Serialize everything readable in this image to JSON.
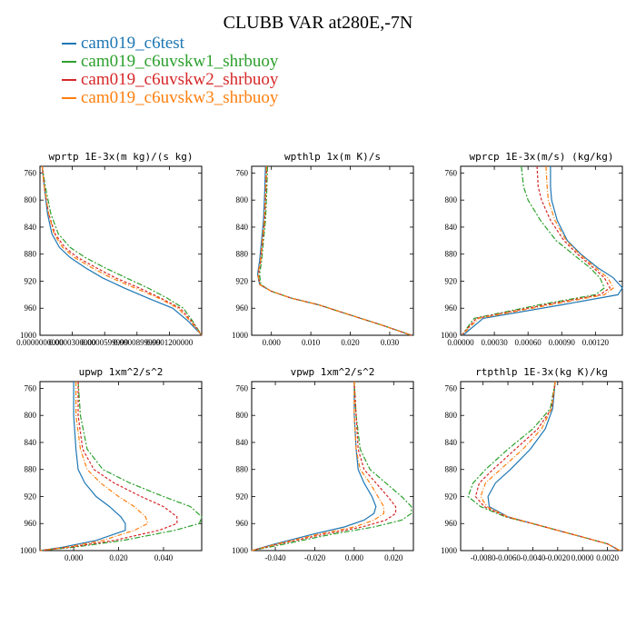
{
  "title": "CLUBB VAR at280E,-7N",
  "legend": [
    {
      "name": "cam019_c6test",
      "color": "#1f77b4"
    },
    {
      "name": "cam019_c6uvskw1_shrbuoy",
      "color": "#2ca02c"
    },
    {
      "name": "cam019_c6uvskw2_shrbuoy",
      "color": "#d62728"
    },
    {
      "name": "cam019_c6uvskw3_shrbuoy",
      "color": "#ff7f0e"
    }
  ],
  "chart_data": [
    {
      "type": "line",
      "title": "wprtp  1E-3x(m kg)/(s kg)",
      "xlim": [
        0.0,
        0.00015
      ],
      "ylim": [
        1000,
        750
      ],
      "xticks": [
        0.0,
        3e-05,
        6e-05,
        9e-05,
        0.00012
      ],
      "xtick_labels": [
        "0.0000000000",
        "0.0000300000",
        "0.0000599999",
        "0.0000899999",
        "0.0001200000"
      ],
      "yticks": [
        760,
        800,
        840,
        880,
        920,
        960,
        1000
      ],
      "ytick_labels": [
        "760",
        "800",
        "840",
        "880",
        "920",
        "960",
        "1000"
      ],
      "series": [
        {
          "name": "cam019_c6test",
          "x": [
            2e-06,
            4e-06,
            7e-06,
            1.1e-05,
            1.8e-05,
            2.8e-05,
            4.2e-05,
            5.8e-05,
            7.8e-05,
            0.0001,
            0.000123,
            0.000138,
            0.00015
          ],
          "y": [
            750,
            780,
            820,
            850,
            870,
            885,
            900,
            915,
            930,
            945,
            960,
            980,
            1000
          ]
        },
        {
          "name": "cam019_c6uvskw1_shrbuoy",
          "x": [
            2e-06,
            5e-06,
            1e-05,
            1.7e-05,
            2.8e-05,
            4.2e-05,
            6e-05,
            8e-05,
            0.0001,
            0.000118,
            0.000133,
            0.000142,
            0.00015
          ],
          "y": [
            750,
            780,
            820,
            850,
            870,
            885,
            900,
            915,
            930,
            945,
            960,
            980,
            1000
          ]
        },
        {
          "name": "cam019_c6uvskw2_shrbuoy",
          "x": [
            2e-06,
            4e-06,
            8e-06,
            1.4e-05,
            2.3e-05,
            3.5e-05,
            5.2e-05,
            7e-05,
            9.2e-05,
            0.000112,
            0.00013,
            0.000141,
            0.00015
          ],
          "y": [
            750,
            780,
            820,
            850,
            870,
            885,
            900,
            915,
            930,
            945,
            960,
            980,
            1000
          ]
        },
        {
          "name": "cam019_c6uvskw3_shrbuoy",
          "x": [
            2e-06,
            4e-06,
            8e-06,
            1.3e-05,
            2.1e-05,
            3.2e-05,
            4.8e-05,
            6.6e-05,
            8.8e-05,
            0.00011,
            0.000128,
            0.00014,
            0.00015
          ],
          "y": [
            750,
            780,
            820,
            850,
            870,
            885,
            900,
            915,
            930,
            945,
            960,
            980,
            1000
          ]
        }
      ]
    },
    {
      "type": "line",
      "title": "wpthlp  1x(m K)/s",
      "xlim": [
        -0.005,
        0.036
      ],
      "ylim": [
        1000,
        750
      ],
      "xticks": [
        0.0,
        0.01,
        0.02,
        0.03
      ],
      "xtick_labels": [
        "0.000",
        "0.010",
        "0.020",
        "0.030"
      ],
      "yticks": [
        760,
        800,
        840,
        880,
        920,
        960,
        1000
      ],
      "ytick_labels": [
        "760",
        "800",
        "840",
        "880",
        "920",
        "960",
        "1000"
      ],
      "series": [
        {
          "name": "cam019_c6test",
          "x": [
            -0.0015,
            -0.0017,
            -0.002,
            -0.0025,
            -0.003,
            -0.0035,
            -0.003,
            0.0,
            0.005,
            0.012,
            0.02,
            0.028,
            0.0355
          ],
          "y": [
            750,
            790,
            830,
            860,
            890,
            910,
            925,
            935,
            945,
            955,
            970,
            985,
            1000
          ]
        },
        {
          "name": "cam019_c6uvskw1_shrbuoy",
          "x": [
            -0.001,
            -0.0012,
            -0.0015,
            -0.002,
            -0.0025,
            -0.003,
            -0.0027,
            0.0,
            0.005,
            0.012,
            0.02,
            0.028,
            0.0355
          ],
          "y": [
            750,
            790,
            830,
            860,
            890,
            910,
            925,
            935,
            945,
            955,
            970,
            985,
            1000
          ]
        },
        {
          "name": "cam019_c6uvskw2_shrbuoy",
          "x": [
            -0.0012,
            -0.0014,
            -0.0017,
            -0.0022,
            -0.0027,
            -0.0033,
            -0.0029,
            0.0,
            0.005,
            0.012,
            0.02,
            0.028,
            0.0355
          ],
          "y": [
            750,
            790,
            830,
            860,
            890,
            910,
            925,
            935,
            945,
            955,
            970,
            985,
            1000
          ]
        },
        {
          "name": "cam019_c6uvskw3_shrbuoy",
          "x": [
            -0.0013,
            -0.0015,
            -0.0018,
            -0.0023,
            -0.0028,
            -0.0034,
            -0.003,
            0.0,
            0.005,
            0.012,
            0.02,
            0.028,
            0.0355
          ],
          "y": [
            750,
            790,
            830,
            860,
            890,
            910,
            925,
            935,
            945,
            955,
            970,
            985,
            1000
          ]
        }
      ]
    },
    {
      "type": "line",
      "title": "wprcp  1E-3x(m/s) (kg/kg)",
      "xlim": [
        0.0,
        0.00144
      ],
      "ylim": [
        1000,
        750
      ],
      "xticks": [
        0.0,
        0.0003,
        0.0006,
        0.0009,
        0.0012
      ],
      "xtick_labels": [
        "0.00000",
        "0.00030",
        "0.00060",
        "0.00090",
        "0.00120"
      ],
      "yticks": [
        760,
        800,
        840,
        880,
        920,
        960,
        1000
      ],
      "ytick_labels": [
        "760",
        "800",
        "840",
        "880",
        "920",
        "960",
        "1000"
      ],
      "series": [
        {
          "name": "cam019_c6test",
          "x": [
            0.0008,
            0.0008,
            0.00081,
            0.00086,
            0.00095,
            0.00107,
            0.00122,
            0.00136,
            0.00144,
            0.0014,
            0.0009,
            0.0002,
            2e-05
          ],
          "y": [
            750,
            780,
            800,
            830,
            860,
            880,
            900,
            915,
            930,
            940,
            955,
            975,
            1000
          ]
        },
        {
          "name": "cam019_c6uvskw1_shrbuoy",
          "x": [
            0.00054,
            0.00056,
            0.0006,
            0.00071,
            0.00085,
            0.001,
            0.00115,
            0.00124,
            0.00128,
            0.0012,
            0.0007,
            0.00012,
            1e-05
          ],
          "y": [
            750,
            780,
            800,
            830,
            860,
            880,
            900,
            915,
            930,
            940,
            955,
            975,
            1000
          ]
        },
        {
          "name": "cam019_c6uvskw2_shrbuoy",
          "x": [
            0.00068,
            0.00069,
            0.00072,
            0.0008,
            0.00092,
            0.00104,
            0.00118,
            0.00128,
            0.00133,
            0.00124,
            0.00075,
            0.00014,
            1e-05
          ],
          "y": [
            750,
            780,
            800,
            830,
            860,
            880,
            900,
            915,
            930,
            940,
            955,
            975,
            1000
          ]
        },
        {
          "name": "cam019_c6uvskw3_shrbuoy",
          "x": [
            0.00076,
            0.00077,
            0.00078,
            0.00084,
            0.00094,
            0.00106,
            0.0012,
            0.00131,
            0.00136,
            0.00128,
            0.0008,
            0.00016,
            1e-05
          ],
          "y": [
            750,
            780,
            800,
            830,
            860,
            880,
            900,
            915,
            930,
            940,
            955,
            975,
            1000
          ]
        }
      ]
    },
    {
      "type": "line",
      "title": "upwp  1xm^2/s^2",
      "xlim": [
        -0.015,
        0.057
      ],
      "ylim": [
        1000,
        750
      ],
      "xticks": [
        0.0,
        0.02,
        0.04
      ],
      "xtick_labels": [
        "0.000",
        "0.020",
        "0.040"
      ],
      "yticks": [
        760,
        800,
        840,
        880,
        920,
        960,
        1000
      ],
      "ytick_labels": [
        "760",
        "800",
        "840",
        "880",
        "920",
        "960",
        "1000"
      ],
      "series": [
        {
          "name": "cam019_c6test",
          "x": [
            0.0,
            0.0,
            0.001,
            0.002,
            0.005,
            0.01,
            0.016,
            0.021,
            0.023,
            0.023,
            0.01,
            -0.005,
            -0.015
          ],
          "y": [
            750,
            800,
            850,
            880,
            900,
            920,
            935,
            950,
            960,
            970,
            985,
            995,
            1000
          ]
        },
        {
          "name": "cam019_c6uvskw1_shrbuoy",
          "x": [
            0.002,
            0.003,
            0.006,
            0.013,
            0.025,
            0.04,
            0.052,
            0.057,
            0.056,
            0.045,
            0.022,
            0.0,
            -0.015
          ],
          "y": [
            750,
            800,
            850,
            880,
            900,
            920,
            935,
            950,
            960,
            970,
            985,
            995,
            1000
          ]
        },
        {
          "name": "cam019_c6uvskw2_shrbuoy",
          "x": [
            0.002,
            0.002,
            0.004,
            0.009,
            0.018,
            0.03,
            0.04,
            0.046,
            0.046,
            0.038,
            0.018,
            -0.002,
            -0.015
          ],
          "y": [
            750,
            800,
            850,
            880,
            900,
            920,
            935,
            950,
            960,
            970,
            985,
            995,
            1000
          ]
        },
        {
          "name": "cam019_c6uvskw3_shrbuoy",
          "x": [
            0.001,
            0.001,
            0.003,
            0.006,
            0.012,
            0.02,
            0.027,
            0.032,
            0.033,
            0.027,
            0.013,
            -0.003,
            -0.015
          ],
          "y": [
            750,
            800,
            850,
            880,
            900,
            920,
            935,
            950,
            960,
            970,
            985,
            995,
            1000
          ]
        }
      ]
    },
    {
      "type": "line",
      "title": "vpwp  1xm^2/s^2",
      "xlim": [
        -0.052,
        0.03
      ],
      "ylim": [
        1000,
        750
      ],
      "xticks": [
        -0.04,
        -0.02,
        0.0,
        0.02
      ],
      "xtick_labels": [
        "-0.040",
        "-0.020",
        "0.000",
        "0.020"
      ],
      "yticks": [
        760,
        800,
        840,
        880,
        920,
        960,
        1000
      ],
      "ytick_labels": [
        "760",
        "800",
        "840",
        "880",
        "920",
        "960",
        "1000"
      ],
      "series": [
        {
          "name": "cam019_c6test",
          "x": [
            0.0,
            0.0,
            0.001,
            0.002,
            0.005,
            0.009,
            0.011,
            0.01,
            0.005,
            -0.005,
            -0.02,
            -0.04,
            -0.052
          ],
          "y": [
            750,
            800,
            850,
            880,
            900,
            920,
            935,
            945,
            955,
            965,
            975,
            990,
            1000
          ]
        },
        {
          "name": "cam019_c6uvskw1_shrbuoy",
          "x": [
            0.0,
            0.001,
            0.003,
            0.008,
            0.016,
            0.024,
            0.029,
            0.029,
            0.024,
            0.01,
            -0.01,
            -0.035,
            -0.052
          ],
          "y": [
            750,
            800,
            850,
            880,
            900,
            920,
            935,
            945,
            955,
            965,
            975,
            990,
            1000
          ]
        },
        {
          "name": "cam019_c6uvskw2_shrbuoy",
          "x": [
            0.0,
            0.001,
            0.002,
            0.005,
            0.011,
            0.017,
            0.021,
            0.021,
            0.016,
            0.004,
            -0.014,
            -0.038,
            -0.052
          ],
          "y": [
            750,
            800,
            850,
            880,
            900,
            920,
            935,
            945,
            955,
            965,
            975,
            990,
            1000
          ]
        },
        {
          "name": "cam019_c6uvskw3_shrbuoy",
          "x": [
            0.0,
            0.0,
            0.001,
            0.003,
            0.008,
            0.012,
            0.015,
            0.015,
            0.01,
            0.0,
            -0.017,
            -0.039,
            -0.052
          ],
          "y": [
            750,
            800,
            850,
            880,
            900,
            920,
            935,
            945,
            955,
            965,
            975,
            990,
            1000
          ]
        }
      ]
    },
    {
      "type": "line",
      "title": "rtpthlp  1E-3x(kg K)/kg",
      "xlim": [
        -0.0098,
        0.0032
      ],
      "ylim": [
        1000,
        750
      ],
      "xticks": [
        -0.008,
        -0.006,
        -0.004,
        -0.002,
        0.0,
        0.002
      ],
      "xtick_labels": [
        "-0.0080",
        "-0.0060",
        "-0.0040",
        "-0.0020",
        "0.0000",
        "0.0020"
      ],
      "yticks": [
        760,
        800,
        840,
        880,
        920,
        960,
        1000
      ],
      "ytick_labels": [
        "760",
        "800",
        "840",
        "880",
        "920",
        "960",
        "1000"
      ],
      "series": [
        {
          "name": "cam019_c6test",
          "x": [
            -0.0022,
            -0.0024,
            -0.003,
            -0.0042,
            -0.0058,
            -0.007,
            -0.0076,
            -0.0075,
            -0.006,
            -0.003,
            0.0,
            0.002,
            0.003
          ],
          "y": [
            750,
            790,
            820,
            850,
            880,
            900,
            920,
            935,
            950,
            965,
            980,
            990,
            1000
          ]
        },
        {
          "name": "cam019_c6uvskw1_shrbuoy",
          "x": [
            -0.0022,
            -0.0026,
            -0.004,
            -0.006,
            -0.0078,
            -0.0088,
            -0.0092,
            -0.0082,
            -0.0062,
            -0.003,
            0.0,
            0.002,
            0.003
          ],
          "y": [
            750,
            790,
            820,
            850,
            880,
            900,
            920,
            935,
            950,
            965,
            980,
            990,
            1000
          ]
        },
        {
          "name": "cam019_c6uvskw2_shrbuoy",
          "x": [
            -0.0022,
            -0.0025,
            -0.0036,
            -0.0054,
            -0.0072,
            -0.0083,
            -0.0086,
            -0.0079,
            -0.0061,
            -0.003,
            0.0,
            0.002,
            0.003
          ],
          "y": [
            750,
            790,
            820,
            850,
            880,
            900,
            920,
            935,
            950,
            965,
            980,
            990,
            1000
          ]
        },
        {
          "name": "cam019_c6uvskw3_shrbuoy",
          "x": [
            -0.0022,
            -0.0025,
            -0.0033,
            -0.0048,
            -0.0066,
            -0.0078,
            -0.0082,
            -0.0077,
            -0.006,
            -0.003,
            0.0,
            0.002,
            0.003
          ],
          "y": [
            750,
            790,
            820,
            850,
            880,
            900,
            920,
            935,
            950,
            965,
            980,
            990,
            1000
          ]
        }
      ]
    }
  ]
}
